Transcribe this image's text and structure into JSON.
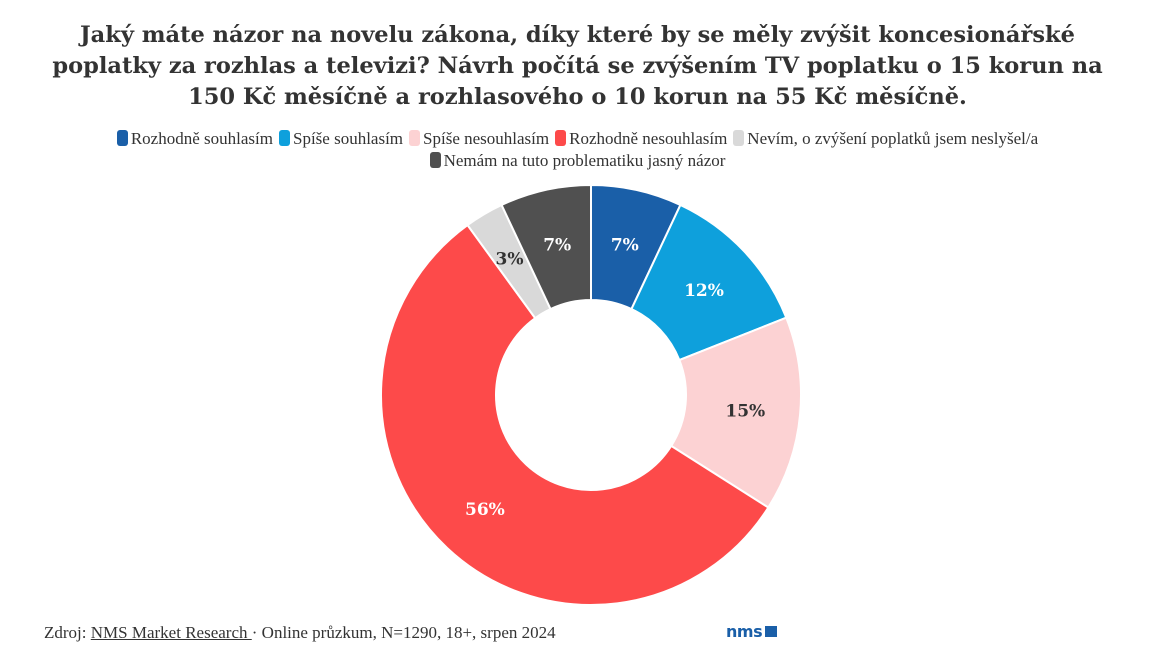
{
  "chart_data": {
    "type": "pie",
    "donut": true,
    "title": "Jaký máte názor na novelu zákona, díky které by se měly zvýšit koncesionářské poplatky za rozhlas a televizi? Návrh počítá se zvýšením TV poplatku o 15 korun na 150 Kč měsíčně a rozhlasového o 10 korun na 55 Kč měsíčně.",
    "legend_position": "top",
    "categories": [
      "Rozhodně souhlasím",
      "Spíše souhlasím",
      "Spíše nesouhlasím",
      "Rozhodně nesouhlasím",
      "Nevím, o zvýšení poplatků jsem neslyšel/a",
      "Nemám na tuto problematiku jasný názor"
    ],
    "values": [
      7,
      12,
      15,
      56,
      3,
      7
    ],
    "labels": [
      "7%",
      "12%",
      "15%",
      "56%",
      "3%",
      "7%"
    ],
    "colors": [
      "#1a5fa8",
      "#0ea0dc",
      "#fcd2d3",
      "#fd4a4a",
      "#d9d9d9",
      "#505050"
    ],
    "label_colors": [
      "#ffffff",
      "#ffffff",
      "#333333",
      "#ffffff",
      "#333333",
      "#ffffff"
    ]
  },
  "footer": {
    "prefix": "Zdroj: ",
    "source_link": "NMS Market Research ",
    "details": "· Online průzkum, N=1290, 18+, srpen 2024"
  },
  "logo": {
    "text": "nms"
  }
}
